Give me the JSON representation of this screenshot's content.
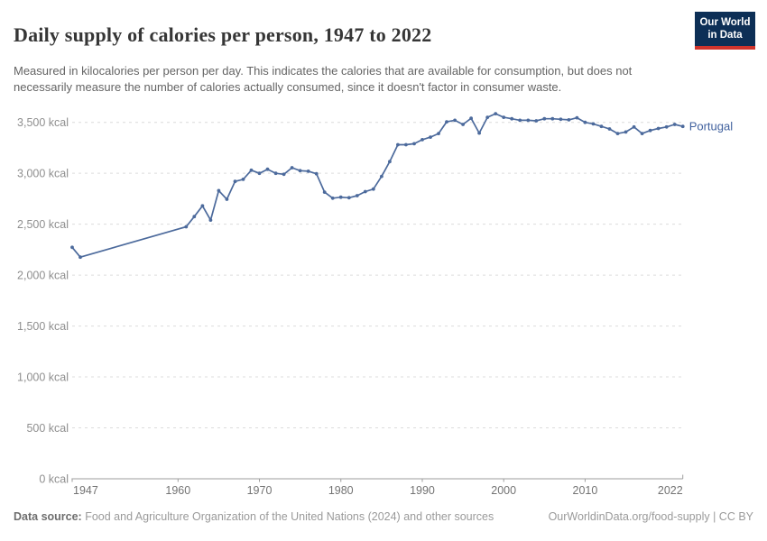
{
  "header": {
    "title": "Daily supply of calories per person, 1947 to 2022",
    "subtitle": "Measured in kilocalories per person per day. This indicates the calories that are available for consumption, but does not necessarily measure the number of calories actually consumed, since it doesn't factor in consumer waste.",
    "logo": {
      "line1": "Our World",
      "line2": "in Data",
      "bg_color": "#0d2f56",
      "accent_color": "#d0342c"
    }
  },
  "chart_data": {
    "type": "line",
    "title": "Daily supply of calories per person, 1947 to 2022",
    "xlabel": "",
    "ylabel": "",
    "xlim": [
      1947,
      2022
    ],
    "ylim": [
      0,
      3500
    ],
    "grid": "horizontal-dashed",
    "legend_position": "end-of-line-label",
    "x_ticks": [
      1947,
      1960,
      1970,
      1980,
      1990,
      2000,
      2010,
      2022
    ],
    "x_tick_labels": [
      "1947",
      "1960",
      "1970",
      "1980",
      "1990",
      "2000",
      "2010",
      "2022"
    ],
    "y_ticks": [
      0,
      500,
      1000,
      1500,
      2000,
      2500,
      3000,
      3500
    ],
    "y_tick_labels": [
      "0 kcal",
      "500 kcal",
      "1,000 kcal",
      "1,500 kcal",
      "2,000 kcal",
      "2,500 kcal",
      "3,000 kcal",
      "3,500 kcal"
    ],
    "colors": {
      "line": "#4c6a9c",
      "series_label": "#41619e",
      "gridline": "#dcdcdc",
      "axis_line": "#9e9e9e",
      "y_tick_text": "#8f8f8f",
      "x_tick_text": "#737373"
    },
    "series": [
      {
        "name": "Portugal",
        "points": [
          [
            1947,
            2273
          ],
          [
            1948,
            2176
          ],
          [
            1961,
            2475
          ],
          [
            1962,
            2575
          ],
          [
            1963,
            2680
          ],
          [
            1964,
            2540
          ],
          [
            1965,
            2830
          ],
          [
            1966,
            2745
          ],
          [
            1967,
            2920
          ],
          [
            1968,
            2940
          ],
          [
            1969,
            3030
          ],
          [
            1970,
            3000
          ],
          [
            1971,
            3040
          ],
          [
            1972,
            3000
          ],
          [
            1973,
            2990
          ],
          [
            1974,
            3055
          ],
          [
            1975,
            3025
          ],
          [
            1976,
            3020
          ],
          [
            1977,
            2995
          ],
          [
            1978,
            2815
          ],
          [
            1979,
            2755
          ],
          [
            1980,
            2765
          ],
          [
            1981,
            2760
          ],
          [
            1982,
            2780
          ],
          [
            1983,
            2820
          ],
          [
            1984,
            2845
          ],
          [
            1985,
            2970
          ],
          [
            1986,
            3115
          ],
          [
            1987,
            3280
          ],
          [
            1988,
            3280
          ],
          [
            1989,
            3290
          ],
          [
            1990,
            3330
          ],
          [
            1991,
            3355
          ],
          [
            1992,
            3390
          ],
          [
            1993,
            3505
          ],
          [
            1994,
            3520
          ],
          [
            1995,
            3480
          ],
          [
            1996,
            3540
          ],
          [
            1997,
            3395
          ],
          [
            1998,
            3550
          ],
          [
            1999,
            3585
          ],
          [
            2000,
            3550
          ],
          [
            2001,
            3535
          ],
          [
            2002,
            3520
          ],
          [
            2003,
            3520
          ],
          [
            2004,
            3515
          ],
          [
            2005,
            3535
          ],
          [
            2006,
            3535
          ],
          [
            2007,
            3530
          ],
          [
            2008,
            3525
          ],
          [
            2009,
            3545
          ],
          [
            2010,
            3500
          ],
          [
            2011,
            3485
          ],
          [
            2012,
            3460
          ],
          [
            2013,
            3435
          ],
          [
            2014,
            3390
          ],
          [
            2015,
            3405
          ],
          [
            2016,
            3455
          ],
          [
            2017,
            3390
          ],
          [
            2018,
            3420
          ],
          [
            2019,
            3440
          ],
          [
            2020,
            3455
          ],
          [
            2021,
            3480
          ],
          [
            2022,
            3460
          ]
        ]
      }
    ]
  },
  "footer": {
    "source_label": "Data source:",
    "source_text": " Food and Agriculture Organization of the United Nations (2024) and other sources",
    "link_text": "OurWorldinData.org/food-supply | CC BY"
  }
}
